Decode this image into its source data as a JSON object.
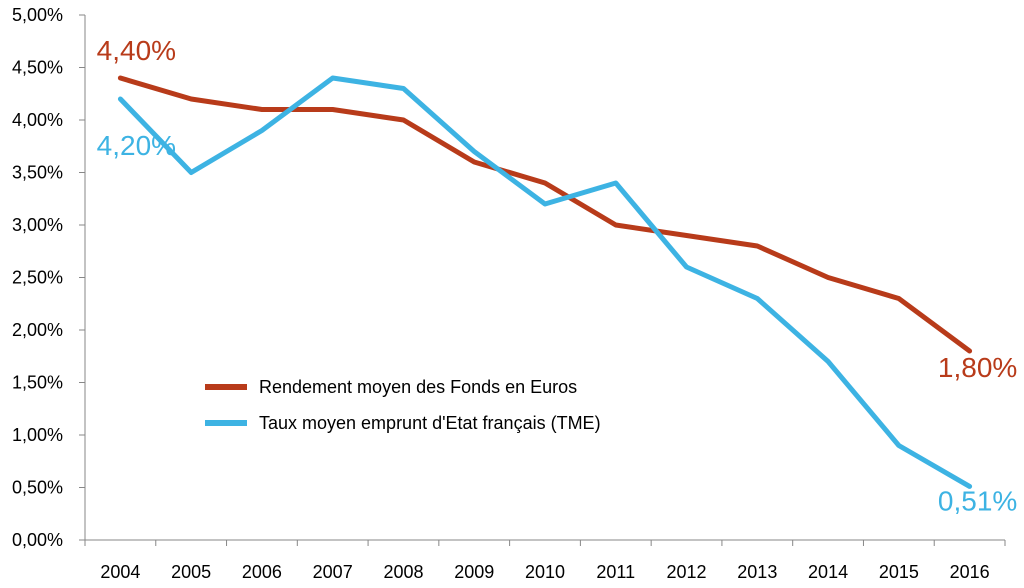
{
  "chart_data": {
    "type": "line",
    "title": "",
    "xlabel": "",
    "ylabel": "",
    "categories": [
      "2004",
      "2005",
      "2006",
      "2007",
      "2008",
      "2009",
      "2010",
      "2011",
      "2012",
      "2013",
      "2014",
      "2015",
      "2016"
    ],
    "ylim": [
      0,
      5
    ],
    "ytick_values": [
      0,
      0.5,
      1,
      1.5,
      2,
      2.5,
      3,
      3.5,
      4,
      4.5,
      5
    ],
    "ytick_labels": [
      "0,00%",
      "0,50%",
      "1,00%",
      "1,50%",
      "2,00%",
      "2,50%",
      "3,00%",
      "3,50%",
      "4,00%",
      "4,50%",
      "5,00%"
    ],
    "grid": false,
    "legend_position": "bottom-left",
    "series": [
      {
        "name": "Rendement moyen des Fonds en Euros",
        "color": "#B83B1A",
        "values": [
          4.4,
          4.2,
          4.1,
          4.1,
          4.0,
          3.6,
          3.4,
          3.0,
          2.9,
          2.8,
          2.5,
          2.3,
          1.8
        ]
      },
      {
        "name": "Taux moyen emprunt d'Etat français (TME)",
        "color": "#3DB3E3",
        "values": [
          4.2,
          3.5,
          3.9,
          4.4,
          4.3,
          3.7,
          3.2,
          3.4,
          2.6,
          2.3,
          1.7,
          0.9,
          0.51
        ]
      }
    ],
    "annotations": [
      {
        "text": "4,40%",
        "series": 0,
        "index": 0,
        "color": "#B83B1A"
      },
      {
        "text": "4,20%",
        "series": 1,
        "index": 0,
        "color": "#3DB3E3"
      },
      {
        "text": "1,80%",
        "series": 0,
        "index": 12,
        "color": "#B83B1A"
      },
      {
        "text": "0,51%",
        "series": 1,
        "index": 12,
        "color": "#3DB3E3"
      }
    ]
  }
}
